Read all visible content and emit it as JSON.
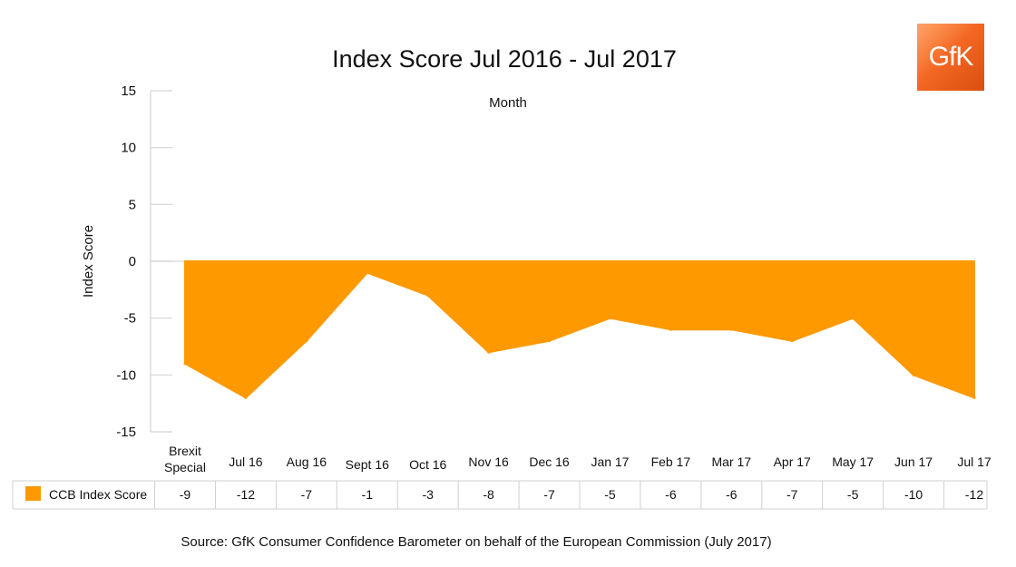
{
  "chart_data": {
    "type": "area",
    "title": "Index Score Jul 2016 - Jul 2017",
    "xlabel": "Month",
    "ylabel": "Index Score",
    "ylim": [
      -15,
      15
    ],
    "yticks": [
      15,
      10,
      5,
      0,
      -5,
      -10,
      -15
    ],
    "grid": false,
    "legend_position": "data-table-left",
    "categories": [
      "Brexit Special",
      "Jul 16",
      "Aug 16",
      "Sept 16",
      "Oct 16",
      "Nov 16",
      "Dec 16",
      "Jan 17",
      "Feb 17",
      "Mar 17",
      "Apr 17",
      "May 17",
      "Jun 17",
      "Jul 17"
    ],
    "series": [
      {
        "name": "CCB Index Score",
        "color": "#ff9900",
        "values": [
          -9,
          -12,
          -7,
          -1,
          -3,
          -8,
          -7,
          -5,
          -6,
          -6,
          -7,
          -5,
          -10,
          -12
        ]
      }
    ]
  },
  "source": "Source: GfK Consumer Confidence Barometer on behalf of the European Commission (July 2017)",
  "logo_text": "GfK"
}
